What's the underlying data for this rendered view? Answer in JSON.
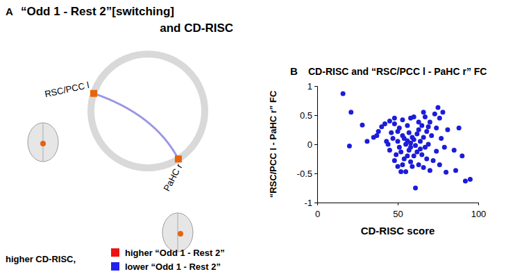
{
  "panel_a": {
    "label": "A",
    "title_lines": [
      "“Odd 1 - Rest 2”[switching]",
      "and CD-RISC"
    ],
    "nodes": [
      {
        "label": "RSC/PCC l",
        "color": "#e8630a"
      },
      {
        "label": "PaHC r",
        "color": "#e8630a"
      }
    ],
    "edge": {
      "from": 0,
      "to": 1,
      "color": "#9a97e6"
    },
    "legend": {
      "title": "higher CD-RISC,",
      "items": [
        {
          "label": "higher “Odd 1 - Rest 2”",
          "color": "#ee1111"
        },
        {
          "label": "lower “Odd 1 - Rest 2”",
          "color": "#2222ee"
        }
      ]
    }
  },
  "chart_data": {
    "type": "scatter",
    "panel_label": "B",
    "title": "CD-RISC and “RSC/PCC l - PaHC r” FC",
    "x_label": "CD-RISC score",
    "y_label": "“RSC/PCC l - PaHC r” FC",
    "color": "#1c1cd9",
    "marker": "circle",
    "xlim": [
      0,
      100
    ],
    "xticks": [
      0,
      50,
      100
    ],
    "ylim": [
      -1,
      1
    ],
    "yticks": [
      -1,
      -0.5,
      0,
      0.5,
      1
    ],
    "x": [
      16,
      21,
      20,
      28,
      31,
      35,
      37,
      38,
      40,
      42,
      43,
      44,
      45,
      46,
      47,
      48,
      48,
      49,
      50,
      50,
      51,
      51,
      52,
      52,
      53,
      53,
      54,
      54,
      55,
      55,
      56,
      56,
      57,
      57,
      58,
      58,
      58,
      59,
      59,
      60,
      60,
      60,
      61,
      61,
      62,
      62,
      63,
      63,
      64,
      64,
      65,
      65,
      66,
      66,
      67,
      67,
      68,
      68,
      69,
      70,
      70,
      71,
      72,
      73,
      74,
      74,
      75,
      76,
      76,
      77,
      78,
      79,
      80,
      81,
      85,
      86,
      88,
      90,
      92,
      95,
      45,
      48,
      50,
      53,
      56,
      63,
      69,
      58,
      66
    ],
    "values": [
      0.87,
      0.55,
      -0.03,
      0.33,
      0.05,
      0.12,
      0.15,
      0.22,
      0.3,
      0.35,
      0.05,
      0.0,
      0.4,
      0.2,
      0.1,
      0.35,
      0.45,
      -0.18,
      0.22,
      0.05,
      -0.05,
      0.28,
      -0.47,
      -0.13,
      0.15,
      0.42,
      0.1,
      -0.25,
      0.0,
      -0.47,
      0.32,
      0.06,
      -0.1,
      0.2,
      -0.3,
      0.02,
      -0.05,
      -0.38,
      0.12,
      0.47,
      -0.2,
      0.08,
      -0.75,
      -0.02,
      0.18,
      -0.13,
      0.25,
      -0.35,
      0.05,
      -0.08,
      0.32,
      -0.18,
      0.12,
      -0.4,
      0.47,
      -0.05,
      0.22,
      -0.25,
      0.0,
      0.38,
      -0.45,
      0.15,
      -0.28,
      0.52,
      0.28,
      -0.12,
      0.63,
      0.45,
      -0.35,
      0.1,
      0.55,
      -0.05,
      -0.48,
      0.25,
      -0.1,
      -0.45,
      0.28,
      -0.2,
      -0.63,
      -0.6,
      -0.1,
      -0.28,
      -0.38,
      -0.35,
      -0.2,
      0.38,
      0.3,
      0.45,
      0.55
    ]
  }
}
